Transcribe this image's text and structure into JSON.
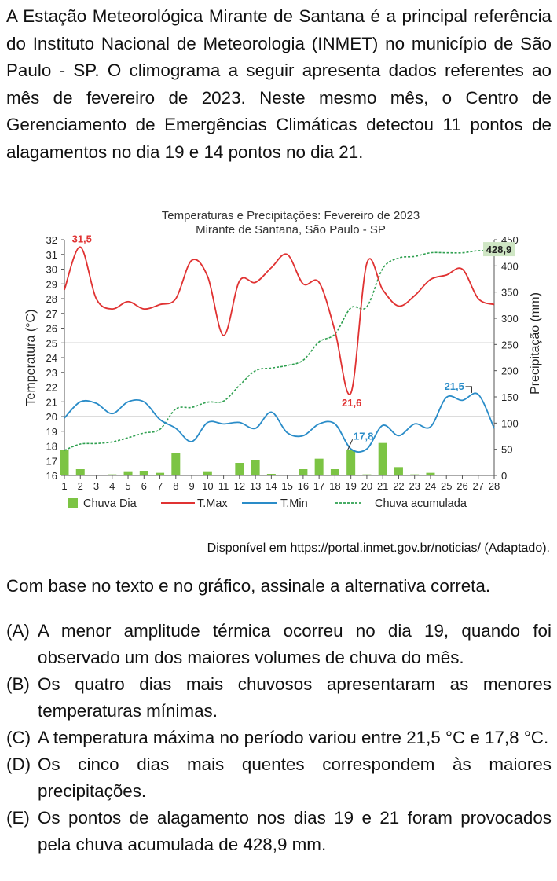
{
  "intro": "A Estação Meteorológica Mirante de Santana é a principal referência do Instituto Nacional de Meteorologia (INMET) no município de São Paulo - SP. O climograma a seguir apresenta dados referentes ao mês de fevereiro de 2023. Neste mesmo mês, o Centro de Gerenciamento de Emergências Climáticas detectou 11 pontos de alagamentos no dia 19 e 14 pontos no dia 21.",
  "source": "Disponível em https://portal.inmet.gov.br/noticias/ (Adaptado).",
  "question": "Com base no texto e no gráfico, assinale a alternativa correta.",
  "alternatives": [
    {
      "letter": "(A)",
      "text": "A menor amplitude térmica ocorreu no dia 19, quando foi observado um dos maiores volumes de chuva do mês."
    },
    {
      "letter": "(B)",
      "text": "Os quatro dias mais chuvosos apresentaram as menores temperaturas mínimas."
    },
    {
      "letter": "(C)",
      "text": "A temperatura máxima no período variou entre 21,5 °C e 17,8 °C."
    },
    {
      "letter": "(D)",
      "text": "Os cinco dias mais quentes correspondem às maiores precipitações."
    },
    {
      "letter": "(E)",
      "text": "Os pontos de alagamento nos dias 19 e 21 foram provocados pela chuva acumulada de 428,9 mm."
    }
  ],
  "chart_data": {
    "type": "bar",
    "title": "Temperaturas e Precipitações: Fevereiro de 2023",
    "subtitle": "Mirante de Santana, São Paulo - SP",
    "ylabel": "Temperatura (°C)",
    "y2label": "Precipitação (mm)",
    "ylim": [
      16,
      32
    ],
    "y2lim": [
      0,
      450
    ],
    "categories": [
      1,
      2,
      3,
      4,
      5,
      6,
      7,
      8,
      9,
      10,
      11,
      12,
      13,
      14,
      15,
      16,
      17,
      18,
      19,
      20,
      21,
      22,
      23,
      24,
      25,
      26,
      27,
      28
    ],
    "colors": {
      "chuva_dia": "#7cc444",
      "tmax": "#e03232",
      "tmin": "#2a8cc8",
      "acum": "#2fa050",
      "grid": "#c8c8c8",
      "badge": "#cfe6c4"
    },
    "series": [
      {
        "name": "Chuva Dia",
        "kind": "bar",
        "axis": "right",
        "values": [
          48,
          12,
          0,
          2,
          8,
          9,
          5,
          42,
          0,
          8,
          0,
          24,
          30,
          3,
          0,
          12,
          32,
          12,
          49,
          2,
          62,
          16,
          2,
          5,
          0,
          0,
          0,
          0
        ]
      },
      {
        "name": "T.Max",
        "kind": "line",
        "axis": "left",
        "values": [
          28.6,
          31.5,
          28.0,
          27.3,
          27.8,
          27.3,
          27.6,
          28.0,
          30.6,
          29.5,
          25.5,
          29.2,
          29.1,
          30.1,
          31.0,
          29.0,
          29.1,
          25.8,
          21.6,
          30.4,
          28.6,
          27.5,
          28.2,
          29.3,
          29.6,
          30.0,
          28.0,
          27.6
        ]
      },
      {
        "name": "T.Min",
        "kind": "line",
        "axis": "left",
        "values": [
          19.9,
          21.0,
          20.9,
          20.2,
          21.0,
          21.0,
          19.8,
          19.2,
          18.3,
          19.6,
          19.5,
          19.6,
          19.2,
          20.3,
          18.9,
          18.7,
          19.5,
          19.5,
          17.8,
          17.8,
          19.4,
          18.7,
          19.5,
          19.3,
          21.3,
          21.1,
          21.5,
          19.2
        ]
      },
      {
        "name": "Chuva acumulada",
        "kind": "line",
        "axis": "right",
        "values": [
          48,
          60,
          61,
          64,
          72,
          81,
          88,
          127,
          130,
          140,
          142,
          172,
          200,
          205,
          210,
          220,
          255,
          270,
          320,
          322,
          395,
          415,
          418,
          425,
          425,
          425,
          428.9,
          428.9
        ]
      }
    ],
    "annotations": [
      {
        "text": "31,5",
        "series": "T.Max",
        "day": 2
      },
      {
        "text": "21,6",
        "series": "T.Max",
        "day": 19
      },
      {
        "text": "17,8",
        "series": "T.Min",
        "day": 19
      },
      {
        "text": "21,5",
        "series": "T.Min",
        "day": 27
      },
      {
        "text": "428,9",
        "series": "Chuva acumulada",
        "day": 28
      }
    ],
    "legend": [
      "Chuva Dia",
      "T.Max",
      "T.Min",
      "Chuva acumulada"
    ],
    "legend_position": "bottom"
  }
}
